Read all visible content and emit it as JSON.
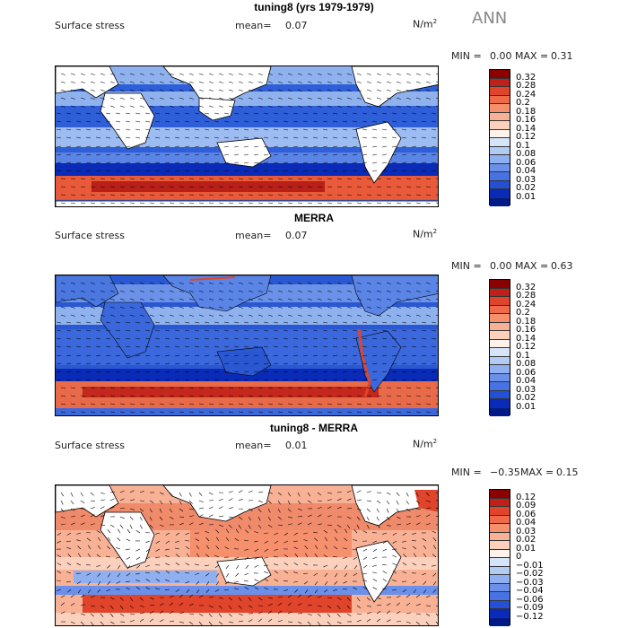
{
  "season": "ANN",
  "variable": "Surface stress",
  "units_base": "N/m",
  "units_sup": "2",
  "mean_label": "mean=",
  "min_label": "MIN =",
  "max_label": "MAX =",
  "panels": [
    {
      "title": "tuning8 (yrs 1979-1979)",
      "mean": "0.07",
      "min": "0.00",
      "max": "0.31",
      "levels": [
        "0.32",
        "0.28",
        "0.24",
        "0.2",
        "0.18",
        "0.16",
        "0.14",
        "0.12",
        "0.1",
        "0.08",
        "0.06",
        "0.04",
        "0.03",
        "0.02",
        "0.01"
      ],
      "colors": [
        "#8b0000",
        "#c0201a",
        "#e0442a",
        "#ef6a48",
        "#f58f6c",
        "#f8b195",
        "#fbd0bd",
        "#fff2ea",
        "#d6e4fa",
        "#b2cbf4",
        "#8faff0",
        "#6a90ea",
        "#4672e4",
        "#2450d6",
        "#0a2ab8",
        "#001a8a"
      ]
    },
    {
      "title": "MERRA",
      "mean": "0.07",
      "min": "0.00",
      "max": "0.63",
      "levels": [
        "0.32",
        "0.28",
        "0.24",
        "0.2",
        "0.18",
        "0.16",
        "0.14",
        "0.12",
        "0.1",
        "0.08",
        "0.06",
        "0.04",
        "0.03",
        "0.02",
        "0.01"
      ],
      "colors": [
        "#8b0000",
        "#c0201a",
        "#e0442a",
        "#ef6a48",
        "#f58f6c",
        "#f8b195",
        "#fbd0bd",
        "#fff2ea",
        "#d6e4fa",
        "#b2cbf4",
        "#8faff0",
        "#6a90ea",
        "#4672e4",
        "#2450d6",
        "#0a2ab8",
        "#001a8a"
      ]
    },
    {
      "title": "tuning8 - MERRA",
      "mean": "0.01",
      "min": "−0.35",
      "max": "0.15",
      "levels": [
        "0.12",
        "0.09",
        "0.06",
        "0.04",
        "0.03",
        "0.02",
        "0.01",
        "0",
        "−0.01",
        "−0.02",
        "−0.03",
        "−0.04",
        "−0.06",
        "−0.09",
        "−0.12"
      ],
      "colors": [
        "#8b0000",
        "#c0201a",
        "#e0442a",
        "#ef6a48",
        "#f58f6c",
        "#f8b195",
        "#fbd0bd",
        "#fff2ea",
        "#d6e4fa",
        "#b2cbf4",
        "#8faff0",
        "#6a90ea",
        "#4672e4",
        "#2450d6",
        "#0a2ab8",
        "#001a8a"
      ]
    }
  ],
  "chart_data": [
    {
      "type": "heatmap",
      "title": "tuning8 (yrs 1979-1979)",
      "subtitle": "Surface stress",
      "units": "N/m2",
      "mean": 0.07,
      "min": 0.0,
      "max": 0.31,
      "contour_levels": [
        0.01,
        0.02,
        0.03,
        0.04,
        0.06,
        0.08,
        0.1,
        0.12,
        0.14,
        0.16,
        0.18,
        0.2,
        0.24,
        0.28,
        0.32
      ],
      "overlay": "wind stress vectors"
    },
    {
      "type": "heatmap",
      "title": "MERRA",
      "subtitle": "Surface stress",
      "units": "N/m2",
      "mean": 0.07,
      "min": 0.0,
      "max": 0.63,
      "contour_levels": [
        0.01,
        0.02,
        0.03,
        0.04,
        0.06,
        0.08,
        0.1,
        0.12,
        0.14,
        0.16,
        0.18,
        0.2,
        0.24,
        0.28,
        0.32
      ],
      "overlay": "wind stress vectors"
    },
    {
      "type": "heatmap",
      "title": "tuning8 - MERRA",
      "subtitle": "Surface stress",
      "units": "N/m2",
      "mean": 0.01,
      "min": -0.35,
      "max": 0.15,
      "contour_levels": [
        -0.12,
        -0.09,
        -0.06,
        -0.04,
        -0.03,
        -0.02,
        -0.01,
        0,
        0.01,
        0.02,
        0.03,
        0.04,
        0.06,
        0.09,
        0.12
      ],
      "overlay": "wind stress vectors"
    }
  ]
}
